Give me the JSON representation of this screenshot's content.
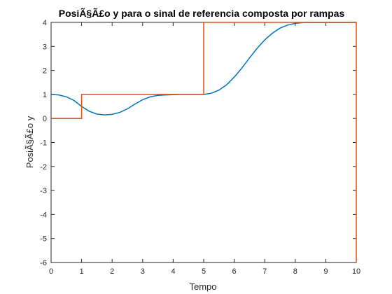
{
  "chart_data": {
    "type": "line",
    "title": "PosiÃ§Ã£o y para o sinal de referencia composta por rampas",
    "xlabel": "Tempo",
    "ylabel": "PosiÃ§Ã£o y",
    "xlim": [
      0,
      10
    ],
    "ylim": [
      -6,
      4
    ],
    "xticks": [
      0,
      1,
      2,
      3,
      4,
      5,
      6,
      7,
      8,
      9,
      10
    ],
    "yticks": [
      -6,
      -5,
      -4,
      -3,
      -2,
      -1,
      0,
      1,
      2,
      3,
      4
    ],
    "grid": false,
    "legend": "none",
    "series": [
      {
        "color": "#0072BD",
        "x": [
          0,
          0.25,
          0.5,
          0.75,
          1,
          1.25,
          1.5,
          1.75,
          2,
          2.25,
          2.5,
          2.75,
          3,
          3.25,
          3.5,
          3.75,
          4,
          4.25,
          4.5,
          4.75,
          5,
          5.25,
          5.5,
          5.75,
          6,
          6.25,
          6.5,
          6.75,
          7,
          7.25,
          7.5,
          7.75,
          8,
          8.25,
          8.5,
          8.75,
          9,
          9.5,
          10
        ],
        "y": [
          1.0,
          0.98,
          0.9,
          0.75,
          0.5,
          0.3,
          0.18,
          0.15,
          0.17,
          0.25,
          0.4,
          0.6,
          0.78,
          0.9,
          0.96,
          0.98,
          0.99,
          1.0,
          1.0,
          1.0,
          1.0,
          1.05,
          1.18,
          1.4,
          1.72,
          2.1,
          2.52,
          2.92,
          3.27,
          3.55,
          3.76,
          3.89,
          3.96,
          3.99,
          4.0,
          4.0,
          4.0,
          4.0,
          4.0
        ]
      },
      {
        "color": "#D95319",
        "x": [
          0,
          1,
          1,
          5,
          5,
          10,
          10
        ],
        "y": [
          0,
          0,
          1,
          1,
          4,
          4,
          -6
        ]
      }
    ]
  }
}
